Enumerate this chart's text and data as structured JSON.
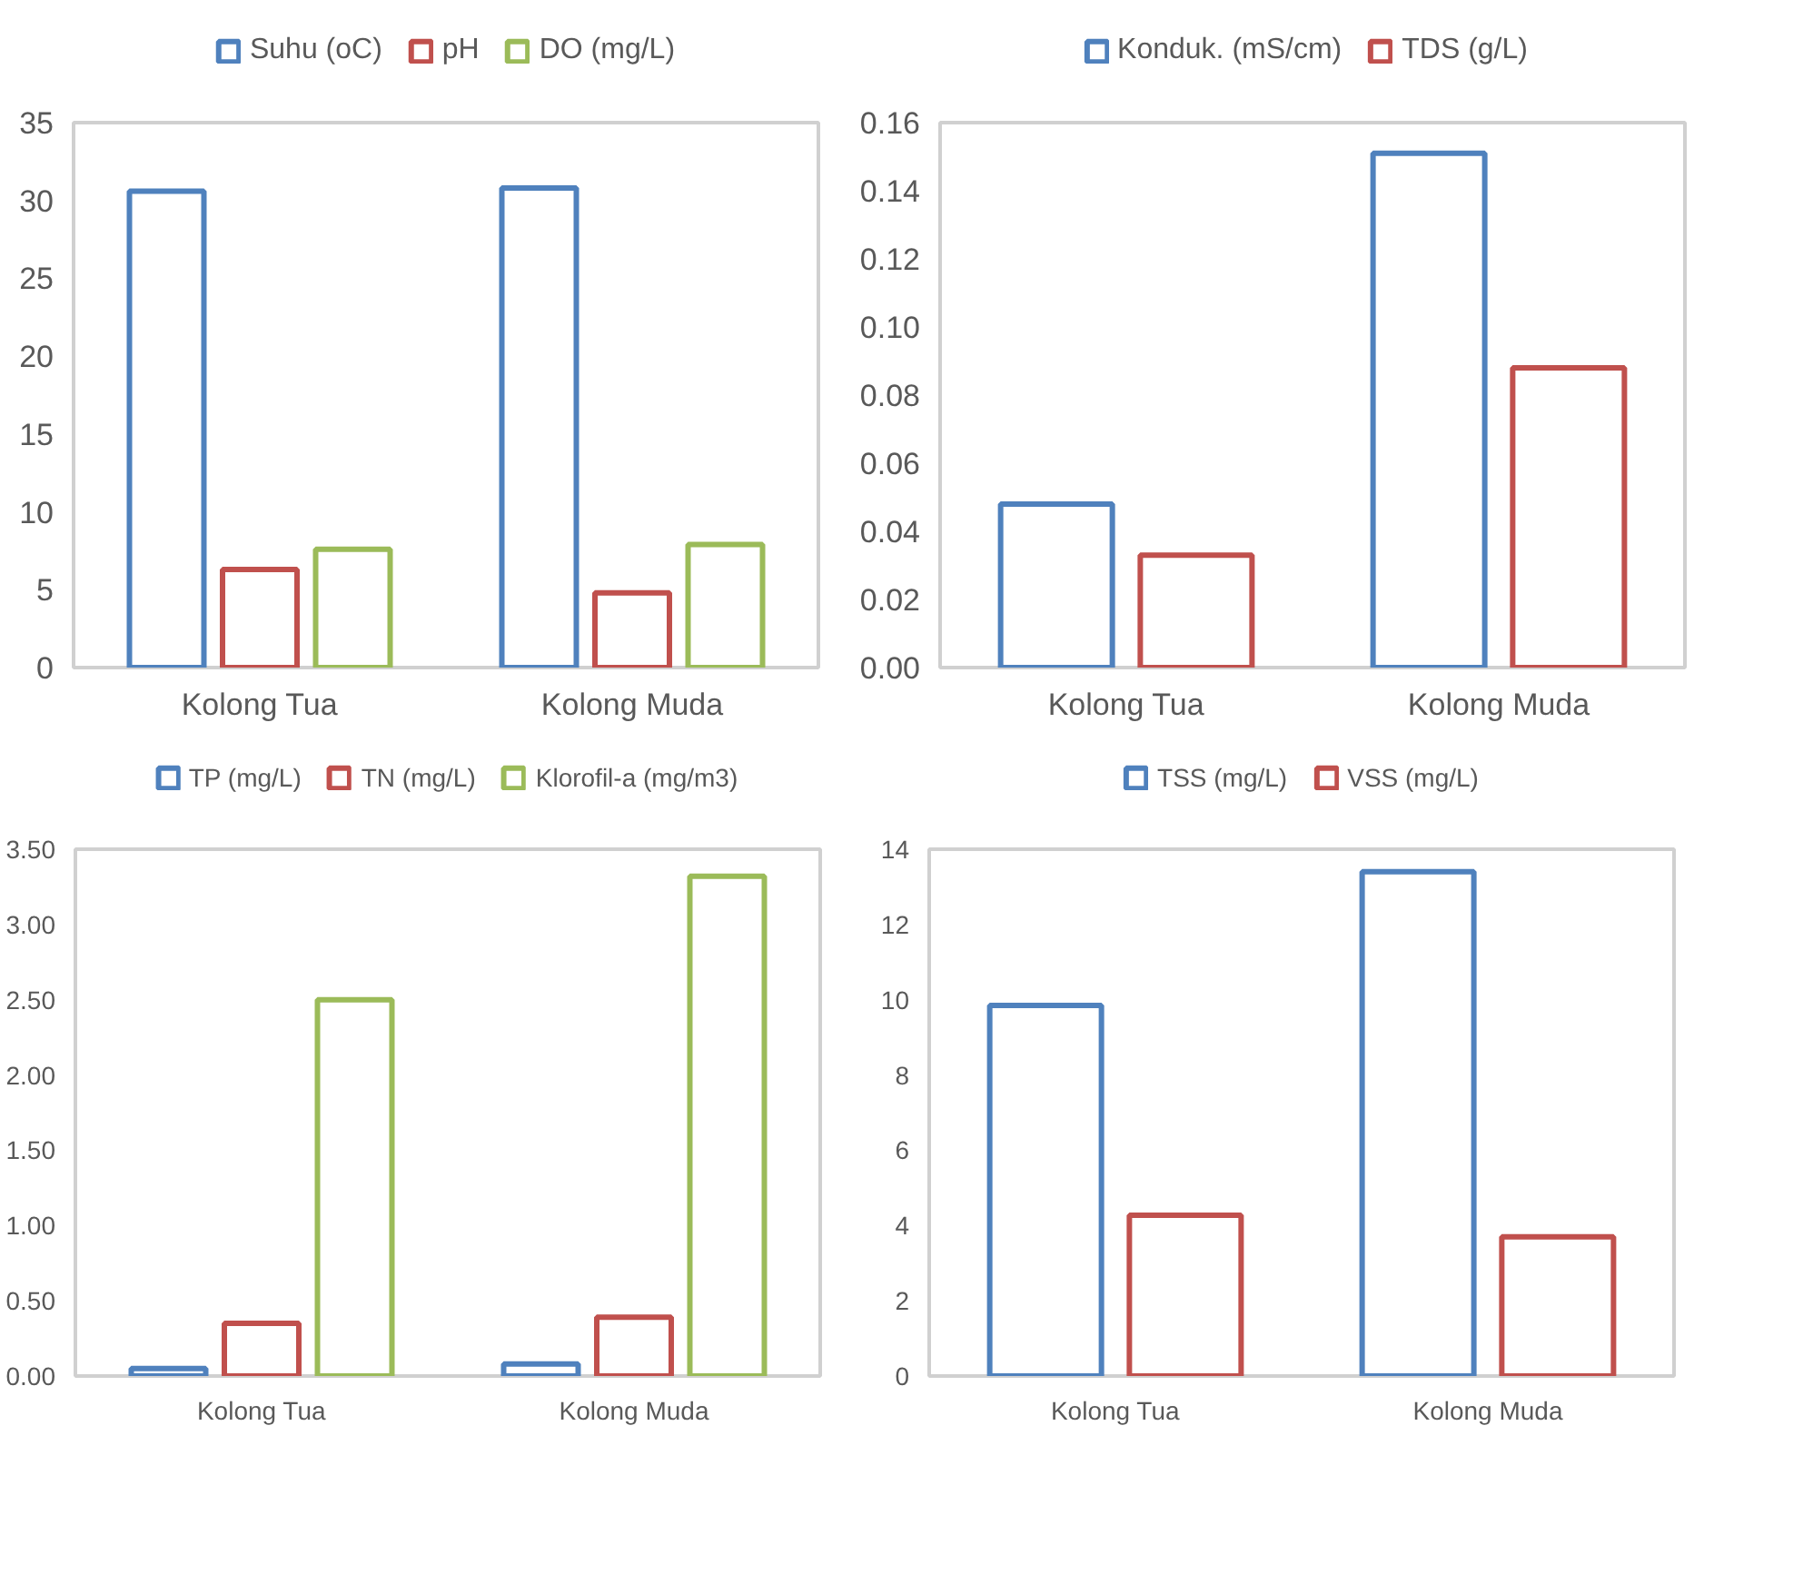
{
  "chart_data": [
    {
      "type": "bar",
      "categories": [
        "Kolong Tua",
        "Kolong Muda"
      ],
      "legend": "top",
      "ylim": [
        0,
        35
      ],
      "yticks": [
        0,
        5,
        10,
        15,
        20,
        25,
        30,
        35
      ],
      "series": [
        {
          "name": "Suhu (oC)",
          "color": "#4f81bd",
          "values": [
            30.6,
            30.8
          ]
        },
        {
          "name": "pH",
          "color": "#c0504d",
          "values": [
            6.3,
            4.8
          ]
        },
        {
          "name": "DO (mg/L)",
          "color": "#9bbb59",
          "values": [
            7.6,
            7.9
          ]
        }
      ]
    },
    {
      "type": "bar",
      "categories": [
        "Kolong Tua",
        "Kolong Muda"
      ],
      "legend": "top",
      "ylim": [
        0,
        0.16
      ],
      "yticks": [
        {
          "value": 0,
          "label": "0.00"
        },
        {
          "value": 0.02,
          "label": "0.02"
        },
        {
          "value": 0.04,
          "label": "0.04"
        },
        {
          "value": 0.06,
          "label": "0.06"
        },
        {
          "value": 0.08,
          "label": "0.08"
        },
        {
          "value": 0.1,
          "label": "0.10"
        },
        {
          "value": 0.12,
          "label": "0.12"
        },
        {
          "value": 0.14,
          "label": "0.14"
        },
        {
          "value": 0.16,
          "label": "0.16"
        }
      ],
      "series": [
        {
          "name": "Konduk. (mS/cm)",
          "color": "#4f81bd",
          "values": [
            0.048,
            0.151
          ]
        },
        {
          "name": "TDS (g/L)",
          "color": "#c0504d",
          "values": [
            0.033,
            0.088
          ]
        }
      ]
    },
    {
      "type": "bar",
      "categories": [
        "Kolong Tua",
        "Kolong Muda"
      ],
      "legend": "top",
      "ylim": [
        0,
        3.5
      ],
      "yticks": [
        {
          "value": 0,
          "label": "0.00"
        },
        {
          "value": 0.5,
          "label": "0.50"
        },
        {
          "value": 1,
          "label": "1.00"
        },
        {
          "value": 1.5,
          "label": "1.50"
        },
        {
          "value": 2,
          "label": "2.00"
        },
        {
          "value": 2.5,
          "label": "2.50"
        },
        {
          "value": 3,
          "label": "3.00"
        },
        {
          "value": 3.5,
          "label": "3.50"
        }
      ],
      "series": [
        {
          "name": "TP (mg/L)",
          "color": "#4f81bd",
          "values": [
            0.05,
            0.08
          ]
        },
        {
          "name": "TN (mg/L)",
          "color": "#c0504d",
          "values": [
            0.35,
            0.39
          ]
        },
        {
          "name": "Klorofil-a (mg/m3)",
          "color": "#9bbb59",
          "values": [
            2.5,
            3.32
          ]
        }
      ]
    },
    {
      "type": "bar",
      "categories": [
        "Kolong Tua",
        "Kolong Muda"
      ],
      "legend": "top",
      "ylim": [
        0,
        14
      ],
      "yticks": [
        0,
        2,
        4,
        6,
        8,
        10,
        12,
        14
      ],
      "series": [
        {
          "name": "TSS (mg/L)",
          "color": "#4f81bd",
          "values": [
            9.85,
            13.4
          ]
        },
        {
          "name": "VSS (mg/L)",
          "color": "#c0504d",
          "values": [
            4.27,
            3.7
          ]
        }
      ]
    }
  ]
}
